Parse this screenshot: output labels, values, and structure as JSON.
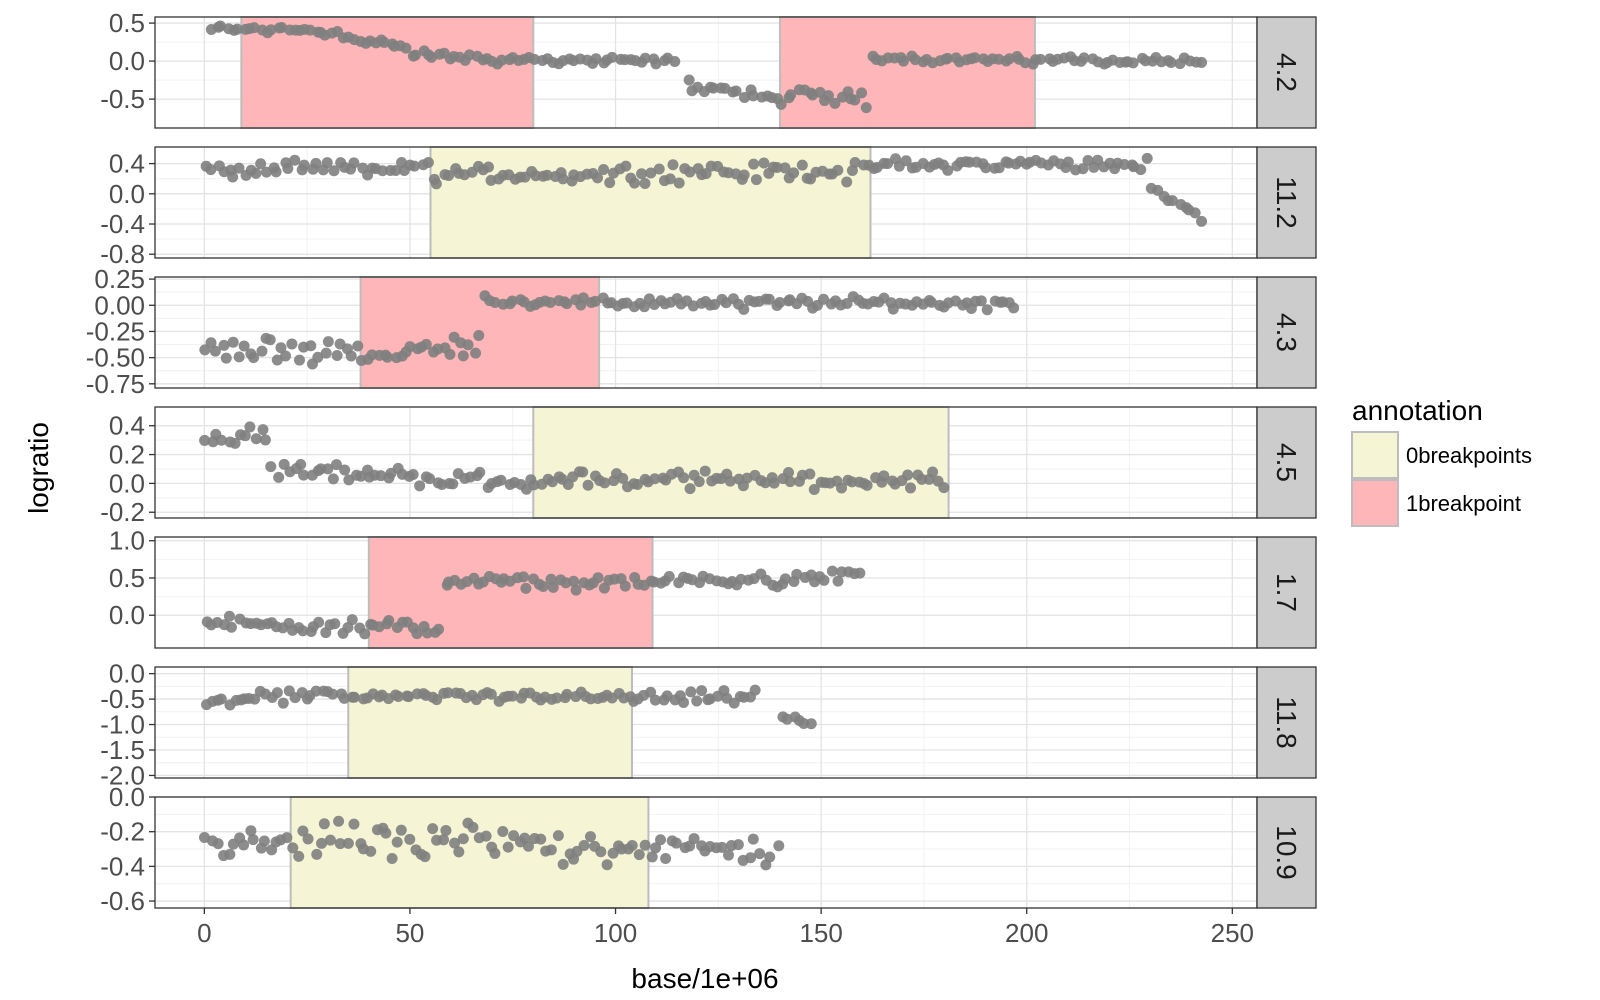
{
  "chart_data": {
    "type": "scatter",
    "layout": "faceted-rows",
    "xlabel": "base/1e+06",
    "ylabel": "logratio",
    "xlim": [
      -12,
      256
    ],
    "x_ticks": [
      0,
      50,
      100,
      150,
      200,
      250
    ],
    "x_tick_labels": [
      "0",
      "50",
      "100",
      "150",
      "200",
      "250"
    ],
    "grid": true,
    "point_color": "#7f7f7f",
    "legend": {
      "title": "annotation",
      "position": "right",
      "entries": [
        {
          "label": "0breakpoints",
          "fill": "#f5f5d6",
          "stroke": "#bdbdbd"
        },
        {
          "label": "1breakpoint",
          "fill": "#ffb6b9",
          "stroke": "#bdbdbd"
        }
      ]
    },
    "panels": [
      {
        "label": "4.2",
        "ylim": [
          -0.88,
          0.58
        ],
        "y_ticks": [
          0.5,
          0.0,
          -0.5
        ],
        "y_tick_labels": [
          "0.5",
          "0.0",
          "-0.5"
        ],
        "regions": [
          {
            "annotation": "1breakpoint",
            "x_start": 9,
            "x_end": 80
          },
          {
            "annotation": "1breakpoint",
            "x_start": 140,
            "x_end": 202
          }
        ],
        "segments": [
          {
            "x_start": 1,
            "x_end": 28,
            "y_start": 0.42,
            "y_end": 0.42,
            "spread": 0.07
          },
          {
            "x_start": 28,
            "x_end": 50,
            "y_start": 0.4,
            "y_end": 0.15,
            "spread": 0.1
          },
          {
            "x_start": 50,
            "x_end": 80,
            "y_start": 0.08,
            "y_end": 0.0,
            "spread": 0.08
          },
          {
            "x_start": 80,
            "x_end": 115,
            "y_start": 0.02,
            "y_end": 0.0,
            "spread": 0.06
          },
          {
            "x_start": 117,
            "x_end": 140,
            "y_start": -0.3,
            "y_end": -0.5,
            "spread": 0.1
          },
          {
            "x_start": 140,
            "x_end": 162,
            "y_start": -0.45,
            "y_end": -0.5,
            "spread": 0.15
          },
          {
            "x_start": 162,
            "x_end": 202,
            "y_start": 0.05,
            "y_end": 0.0,
            "spread": 0.06
          },
          {
            "x_start": 202,
            "x_end": 243,
            "y_start": 0.02,
            "y_end": 0.0,
            "spread": 0.06
          }
        ]
      },
      {
        "label": "11.2",
        "ylim": [
          -0.85,
          0.62
        ],
        "y_ticks": [
          0.4,
          0.0,
          -0.4,
          -0.8
        ],
        "y_tick_labels": [
          "0.4",
          "0.0",
          "-0.4",
          "-0.8"
        ],
        "regions": [
          {
            "annotation": "0breakpoints",
            "x_start": 55,
            "x_end": 162
          }
        ],
        "segments": [
          {
            "x_start": 0,
            "x_end": 55,
            "y_start": 0.3,
            "y_end": 0.35,
            "spread": 0.13
          },
          {
            "x_start": 55,
            "x_end": 162,
            "y_start": 0.25,
            "y_end": 0.3,
            "spread": 0.15
          },
          {
            "x_start": 162,
            "x_end": 230,
            "y_start": 0.38,
            "y_end": 0.4,
            "spread": 0.1
          },
          {
            "x_start": 230,
            "x_end": 243,
            "y_start": 0.1,
            "y_end": -0.35,
            "spread": 0.07
          }
        ]
      },
      {
        "label": "4.3",
        "ylim": [
          -0.79,
          0.27
        ],
        "y_ticks": [
          0.25,
          0.0,
          -0.25,
          -0.5,
          -0.75
        ],
        "y_tick_labels": [
          "0.25",
          "0.00",
          "-0.25",
          "-0.50",
          "-0.75"
        ],
        "regions": [
          {
            "annotation": "1breakpoint",
            "x_start": 38,
            "x_end": 96
          }
        ],
        "segments": [
          {
            "x_start": 0,
            "x_end": 38,
            "y_start": -0.45,
            "y_end": -0.42,
            "spread": 0.15
          },
          {
            "x_start": 38,
            "x_end": 68,
            "y_start": -0.5,
            "y_end": -0.35,
            "spread": 0.12
          },
          {
            "x_start": 68,
            "x_end": 96,
            "y_start": 0.05,
            "y_end": 0.02,
            "spread": 0.06
          },
          {
            "x_start": 96,
            "x_end": 198,
            "y_start": 0.02,
            "y_end": 0.02,
            "spread": 0.07
          }
        ]
      },
      {
        "label": "4.5",
        "ylim": [
          -0.24,
          0.53
        ],
        "y_ticks": [
          0.4,
          0.2,
          0.0,
          -0.2
        ],
        "y_tick_labels": [
          "0.4",
          "0.2",
          "0.0",
          "-0.2"
        ],
        "regions": [
          {
            "annotation": "0breakpoints",
            "x_start": 80,
            "x_end": 181
          }
        ],
        "segments": [
          {
            "x_start": 0,
            "x_end": 16,
            "y_start": 0.3,
            "y_end": 0.38,
            "spread": 0.1
          },
          {
            "x_start": 16,
            "x_end": 80,
            "y_start": 0.1,
            "y_end": 0.0,
            "spread": 0.07
          },
          {
            "x_start": 80,
            "x_end": 181,
            "y_start": 0.03,
            "y_end": 0.02,
            "spread": 0.07
          }
        ]
      },
      {
        "label": "1.7",
        "ylim": [
          -0.44,
          1.05
        ],
        "y_ticks": [
          1.0,
          0.5,
          0.0
        ],
        "y_tick_labels": [
          "1.0",
          "0.5",
          "0.0"
        ],
        "regions": [
          {
            "annotation": "1breakpoint",
            "x_start": 40,
            "x_end": 109
          }
        ],
        "segments": [
          {
            "x_start": 0,
            "x_end": 58,
            "y_start": -0.1,
            "y_end": -0.18,
            "spread": 0.12
          },
          {
            "x_start": 58,
            "x_end": 109,
            "y_start": 0.45,
            "y_end": 0.42,
            "spread": 0.1
          },
          {
            "x_start": 109,
            "x_end": 160,
            "y_start": 0.45,
            "y_end": 0.52,
            "spread": 0.12
          }
        ]
      },
      {
        "label": "11.8",
        "ylim": [
          -2.05,
          0.13
        ],
        "y_ticks": [
          0.0,
          -0.5,
          -1.0,
          -1.5,
          -2.0
        ],
        "y_tick_labels": [
          "0.0",
          "-0.5",
          "-1.0",
          "-1.5",
          "-2.0"
        ],
        "regions": [
          {
            "annotation": "0breakpoints",
            "x_start": 35,
            "x_end": 104
          }
        ],
        "segments": [
          {
            "x_start": 0,
            "x_end": 35,
            "y_start": -0.55,
            "y_end": -0.4,
            "spread": 0.15
          },
          {
            "x_start": 35,
            "x_end": 104,
            "y_start": -0.45,
            "y_end": -0.45,
            "spread": 0.12
          },
          {
            "x_start": 104,
            "x_end": 135,
            "y_start": -0.5,
            "y_end": -0.45,
            "spread": 0.15
          },
          {
            "x_start": 140,
            "x_end": 148,
            "y_start": -0.8,
            "y_end": -1.0,
            "spread": 0.15
          }
        ]
      },
      {
        "label": "10.9",
        "ylim": [
          -0.64,
          0.0
        ],
        "y_ticks": [
          0.0,
          -0.2,
          -0.4,
          -0.6
        ],
        "y_tick_labels": [
          "0.0",
          "-0.2",
          "-0.4",
          "-0.6"
        ],
        "regions": [
          {
            "annotation": "0breakpoints",
            "x_start": 21,
            "x_end": 108
          }
        ],
        "segments": [
          {
            "x_start": 0,
            "x_end": 21,
            "y_start": -0.3,
            "y_end": -0.25,
            "spread": 0.1
          },
          {
            "x_start": 21,
            "x_end": 108,
            "y_start": -0.25,
            "y_end": -0.28,
            "spread": 0.13
          },
          {
            "x_start": 108,
            "x_end": 140,
            "y_start": -0.3,
            "y_end": -0.32,
            "spread": 0.1
          }
        ]
      }
    ]
  }
}
